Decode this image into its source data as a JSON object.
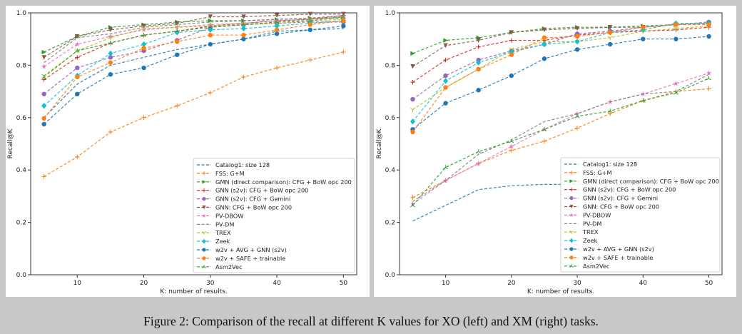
{
  "caption": "Figure 2: Comparison of the recall at different K values for XO (left) and XM (right) tasks.",
  "chart_data": [
    {
      "type": "line",
      "xlabel": "K: number of results.",
      "ylabel": "Recall@K",
      "xlim": [
        3,
        52
      ],
      "ylim": [
        0,
        1
      ],
      "xticks": [
        10,
        20,
        30,
        40,
        50
      ],
      "yticks": [
        0.0,
        0.2,
        0.4,
        0.6,
        0.8,
        1.0
      ],
      "legend": "lower-right",
      "grid": false,
      "x": [
        5,
        10,
        15,
        20,
        25,
        30,
        35,
        40,
        45,
        50
      ],
      "series": [
        {
          "name": "Catalog1: size 128",
          "color": "#1f77b4",
          "marker": "none",
          "values": [
            0.6,
            0.728,
            0.8,
            0.83,
            0.86,
            0.88,
            0.9,
            0.93,
            0.935,
            0.94
          ]
        },
        {
          "name": "FSS: G+M",
          "color": "#ff7f0e",
          "marker": "plus",
          "values": [
            0.375,
            0.45,
            0.545,
            0.6,
            0.645,
            0.695,
            0.755,
            0.79,
            0.82,
            0.85
          ]
        },
        {
          "name": "GMN (direct comparison): CFG + BoW opc 200",
          "color": "#2ca02c",
          "marker": "triangle-right",
          "values": [
            0.85,
            0.91,
            0.945,
            0.955,
            0.965,
            0.97,
            0.97,
            0.975,
            0.98,
            0.98
          ]
        },
        {
          "name": "GNN (s2v): CFG + BoW opc 200",
          "color": "#d62728",
          "marker": "plus",
          "values": [
            0.745,
            0.83,
            0.885,
            0.915,
            0.93,
            0.95,
            0.96,
            0.97,
            0.975,
            0.99
          ]
        },
        {
          "name": "GNN (s2v): CFG + Gemini",
          "color": "#9467bd",
          "marker": "circle",
          "values": [
            0.69,
            0.79,
            0.83,
            0.855,
            0.895,
            0.945,
            0.955,
            0.96,
            0.965,
            0.965
          ]
        },
        {
          "name": "GNN: CFG + BoW opc 200",
          "color": "#8c564b",
          "marker": "triangle-down",
          "values": [
            0.83,
            0.91,
            0.935,
            0.95,
            0.96,
            0.985,
            0.985,
            0.99,
            0.995,
            0.995
          ]
        },
        {
          "name": "PV-DBOW",
          "color": "#e377c2",
          "marker": "star",
          "values": [
            0.795,
            0.88,
            0.91,
            0.935,
            0.945,
            0.955,
            0.96,
            0.97,
            0.975,
            0.985
          ]
        },
        {
          "name": "PV-DM",
          "color": "#7f7f7f",
          "marker": "none",
          "values": [
            0.81,
            0.905,
            0.92,
            0.945,
            0.955,
            0.965,
            0.97,
            0.975,
            0.98,
            0.99
          ]
        },
        {
          "name": "TREX",
          "color": "#bcbd22",
          "marker": "tri-down",
          "values": [
            0.76,
            0.855,
            0.905,
            0.94,
            0.945,
            0.95,
            0.955,
            0.96,
            0.97,
            0.975
          ]
        },
        {
          "name": "Zeek",
          "color": "#17becf",
          "marker": "diamond",
          "values": [
            0.645,
            0.76,
            0.845,
            0.88,
            0.925,
            0.935,
            0.94,
            0.95,
            0.96,
            0.97
          ]
        },
        {
          "name": "w2v + AVG + GNN (s2v)",
          "color": "#1f77b4",
          "marker": "circle",
          "values": [
            0.575,
            0.69,
            0.765,
            0.79,
            0.84,
            0.88,
            0.9,
            0.92,
            0.935,
            0.95
          ]
        },
        {
          "name": "w2v + SAFE + trainable",
          "color": "#ff7f0e",
          "marker": "circle",
          "values": [
            0.597,
            0.755,
            0.81,
            0.865,
            0.89,
            0.915,
            0.915,
            0.935,
            0.955,
            0.97
          ]
        },
        {
          "name": "Asm2Vec",
          "color": "#2ca02c",
          "marker": "tri-up",
          "values": [
            0.755,
            0.855,
            0.885,
            0.915,
            0.93,
            0.945,
            0.955,
            0.965,
            0.97,
            0.985
          ]
        }
      ]
    },
    {
      "type": "line",
      "xlabel": "K: number of results.",
      "ylabel": "Recall@K",
      "xlim": [
        3,
        52
      ],
      "ylim": [
        0,
        1
      ],
      "xticks": [
        10,
        20,
        30,
        40,
        50
      ],
      "yticks": [
        0.0,
        0.2,
        0.4,
        0.6,
        0.8,
        1.0
      ],
      "legend": "lower-right",
      "grid": false,
      "x": [
        5,
        10,
        15,
        20,
        25,
        30,
        35,
        40,
        45,
        50
      ],
      "series": [
        {
          "name": "Catalog1: size 128",
          "color": "#1f77b4",
          "marker": "none",
          "values": [
            0.205,
            0.265,
            0.325,
            0.34,
            0.345,
            0.345,
            0.345,
            0.345,
            0.345,
            0.345
          ]
        },
        {
          "name": "FSS: G+M",
          "color": "#ff7f0e",
          "marker": "plus",
          "values": [
            0.295,
            0.36,
            0.425,
            0.475,
            0.51,
            0.56,
            0.615,
            0.665,
            0.7,
            0.71
          ]
        },
        {
          "name": "GMN (direct comparison): CFG + BoW opc 200",
          "color": "#2ca02c",
          "marker": "triangle-right",
          "values": [
            0.845,
            0.895,
            0.905,
            0.925,
            0.94,
            0.945,
            0.945,
            0.95,
            0.955,
            0.96
          ]
        },
        {
          "name": "GNN (s2v): CFG + BoW opc 200",
          "color": "#d62728",
          "marker": "plus",
          "values": [
            0.735,
            0.82,
            0.87,
            0.895,
            0.895,
            0.915,
            0.925,
            0.93,
            0.935,
            0.945
          ]
        },
        {
          "name": "GNN (s2v): CFG + Gemini",
          "color": "#9467bd",
          "marker": "circle",
          "values": [
            0.67,
            0.76,
            0.82,
            0.855,
            0.88,
            0.92,
            0.93,
            0.945,
            0.955,
            0.965
          ]
        },
        {
          "name": "GNN: CFG + BoW opc 200",
          "color": "#8c564b",
          "marker": "triangle-down",
          "values": [
            0.795,
            0.875,
            0.895,
            0.925,
            0.935,
            0.94,
            0.945,
            0.945,
            0.955,
            0.96
          ]
        },
        {
          "name": "PV-DBOW",
          "color": "#e377c2",
          "marker": "star",
          "values": [
            0.27,
            0.36,
            0.425,
            0.49,
            0.555,
            0.615,
            0.66,
            0.69,
            0.73,
            0.77
          ]
        },
        {
          "name": "PV-DM",
          "color": "#7f7f7f",
          "marker": "none",
          "values": [
            0.28,
            0.36,
            0.46,
            0.515,
            0.585,
            0.615,
            0.66,
            0.69,
            0.7,
            0.765
          ]
        },
        {
          "name": "TREX",
          "color": "#bcbd22",
          "marker": "tri-down",
          "values": [
            0.63,
            0.715,
            0.785,
            0.86,
            0.89,
            0.89,
            0.905,
            0.93,
            0.94,
            0.95
          ]
        },
        {
          "name": "Zeek",
          "color": "#17becf",
          "marker": "diamond",
          "values": [
            0.585,
            0.74,
            0.81,
            0.85,
            0.88,
            0.89,
            0.925,
            0.935,
            0.96,
            0.96
          ]
        },
        {
          "name": "w2v + AVG + GNN (s2v)",
          "color": "#1f77b4",
          "marker": "circle",
          "values": [
            0.555,
            0.655,
            0.705,
            0.76,
            0.825,
            0.86,
            0.88,
            0.9,
            0.9,
            0.91
          ]
        },
        {
          "name": "w2v + SAFE + trainable",
          "color": "#ff7f0e",
          "marker": "circle",
          "values": [
            0.545,
            0.715,
            0.785,
            0.84,
            0.905,
            0.91,
            0.925,
            0.945,
            0.955,
            0.955
          ]
        },
        {
          "name": "Asm2Vec",
          "color": "#2ca02c",
          "marker": "tri-up",
          "values": [
            0.265,
            0.41,
            0.47,
            0.51,
            0.555,
            0.605,
            0.625,
            0.665,
            0.695,
            0.75
          ]
        }
      ]
    }
  ]
}
